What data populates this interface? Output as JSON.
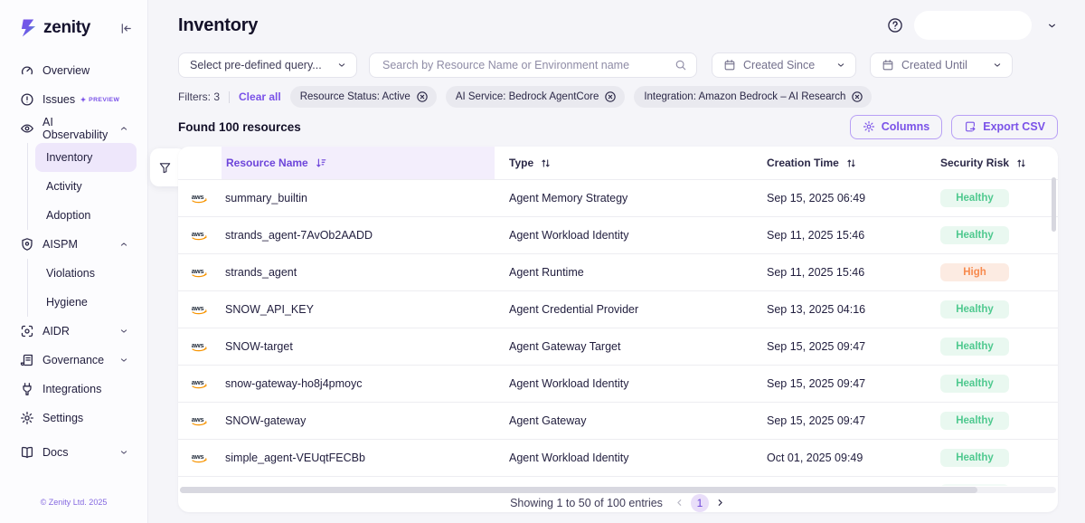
{
  "colors": {
    "accent": "#7a52e8",
    "accent_dark": "#6d45da",
    "active_item_bg": "#eee7fb",
    "healthy_bg": "#e9f8f0",
    "healthy_text": "#4fc98f",
    "high_bg": "#fcebe2",
    "high_text": "#f78a4e",
    "aws_orange": "#f79400",
    "page_bg": "#f5f5f9"
  },
  "sidebar": {
    "logo_text": "zenity",
    "copyright": "© Zenity Ltd. 2025",
    "items": [
      {
        "id": "overview",
        "label": "Overview",
        "icon": "gauge"
      },
      {
        "id": "issues",
        "label": "Issues",
        "icon": "alert-circle",
        "badge": "PREVIEW"
      },
      {
        "id": "ai-observability",
        "label": "AI Observability",
        "icon": "eye",
        "chevron": "up",
        "children": [
          {
            "label": "Inventory",
            "active": true
          },
          {
            "label": "Activity"
          },
          {
            "label": "Adoption"
          }
        ]
      },
      {
        "id": "aispm",
        "label": "AISPM",
        "icon": "shield",
        "chevron": "up",
        "children": [
          {
            "label": "Violations"
          },
          {
            "label": "Hygiene"
          }
        ]
      },
      {
        "id": "aidr",
        "label": "AIDR",
        "icon": "scan",
        "chevron": "down"
      },
      {
        "id": "governance",
        "label": "Governance",
        "icon": "scroll",
        "chevron": "down"
      },
      {
        "id": "integrations",
        "label": "Integrations",
        "icon": "plug"
      },
      {
        "id": "settings",
        "label": "Settings",
        "icon": "gear"
      },
      {
        "id": "docs",
        "label": "Docs",
        "icon": "book",
        "chevron": "down",
        "spaced": true
      }
    ]
  },
  "header": {
    "title": "Inventory"
  },
  "filter_bar": {
    "query_select": "Select pre-defined query...",
    "search_placeholder": "Search by Resource Name or Environment name",
    "created_since": "Created Since",
    "created_until": "Created Until"
  },
  "filters": {
    "label": "Filters: 3",
    "clear_all": "Clear all",
    "chips": [
      "Resource Status: Active",
      "AI Service: Bedrock AgentCore",
      "Integration: Amazon Bedrock – AI Research"
    ]
  },
  "toolbar": {
    "found_label": "Found 100 resources",
    "columns_button": "Columns",
    "export_button": "Export CSV"
  },
  "table": {
    "columns": [
      "Resource Name",
      "Type",
      "Creation Time",
      "Security Risk"
    ],
    "rows": [
      {
        "provider": "aws",
        "name": "summary_builtin",
        "type": "Agent Memory Strategy",
        "created": "Sep 15, 2025 06:49",
        "risk": "Healthy"
      },
      {
        "provider": "aws",
        "name": "strands_agent-7AvOb2AADD",
        "type": "Agent Workload Identity",
        "created": "Sep 11, 2025 15:46",
        "risk": "Healthy"
      },
      {
        "provider": "aws",
        "name": "strands_agent",
        "type": "Agent Runtime",
        "created": "Sep 11, 2025 15:46",
        "risk": "High"
      },
      {
        "provider": "aws",
        "name": "SNOW_API_KEY",
        "type": "Agent Credential Provider",
        "created": "Sep 13, 2025 04:16",
        "risk": "Healthy"
      },
      {
        "provider": "aws",
        "name": "SNOW-target",
        "type": "Agent Gateway Target",
        "created": "Sep 15, 2025 09:47",
        "risk": "Healthy"
      },
      {
        "provider": "aws",
        "name": "snow-gateway-ho8j4pmoyc",
        "type": "Agent Workload Identity",
        "created": "Sep 15, 2025 09:47",
        "risk": "Healthy"
      },
      {
        "provider": "aws",
        "name": "SNOW-gateway",
        "type": "Agent Gateway",
        "created": "Sep 15, 2025 09:47",
        "risk": "Healthy"
      },
      {
        "provider": "aws",
        "name": "simple_agent-VEUqtFECBb",
        "type": "Agent Workload Identity",
        "created": "Oct 01, 2025 09:49",
        "risk": "Healthy"
      }
    ],
    "partial_row": {
      "risk": "Healthy"
    }
  },
  "pagination": {
    "summary": "Showing 1 to 50 of 100 entries",
    "page": "1"
  }
}
